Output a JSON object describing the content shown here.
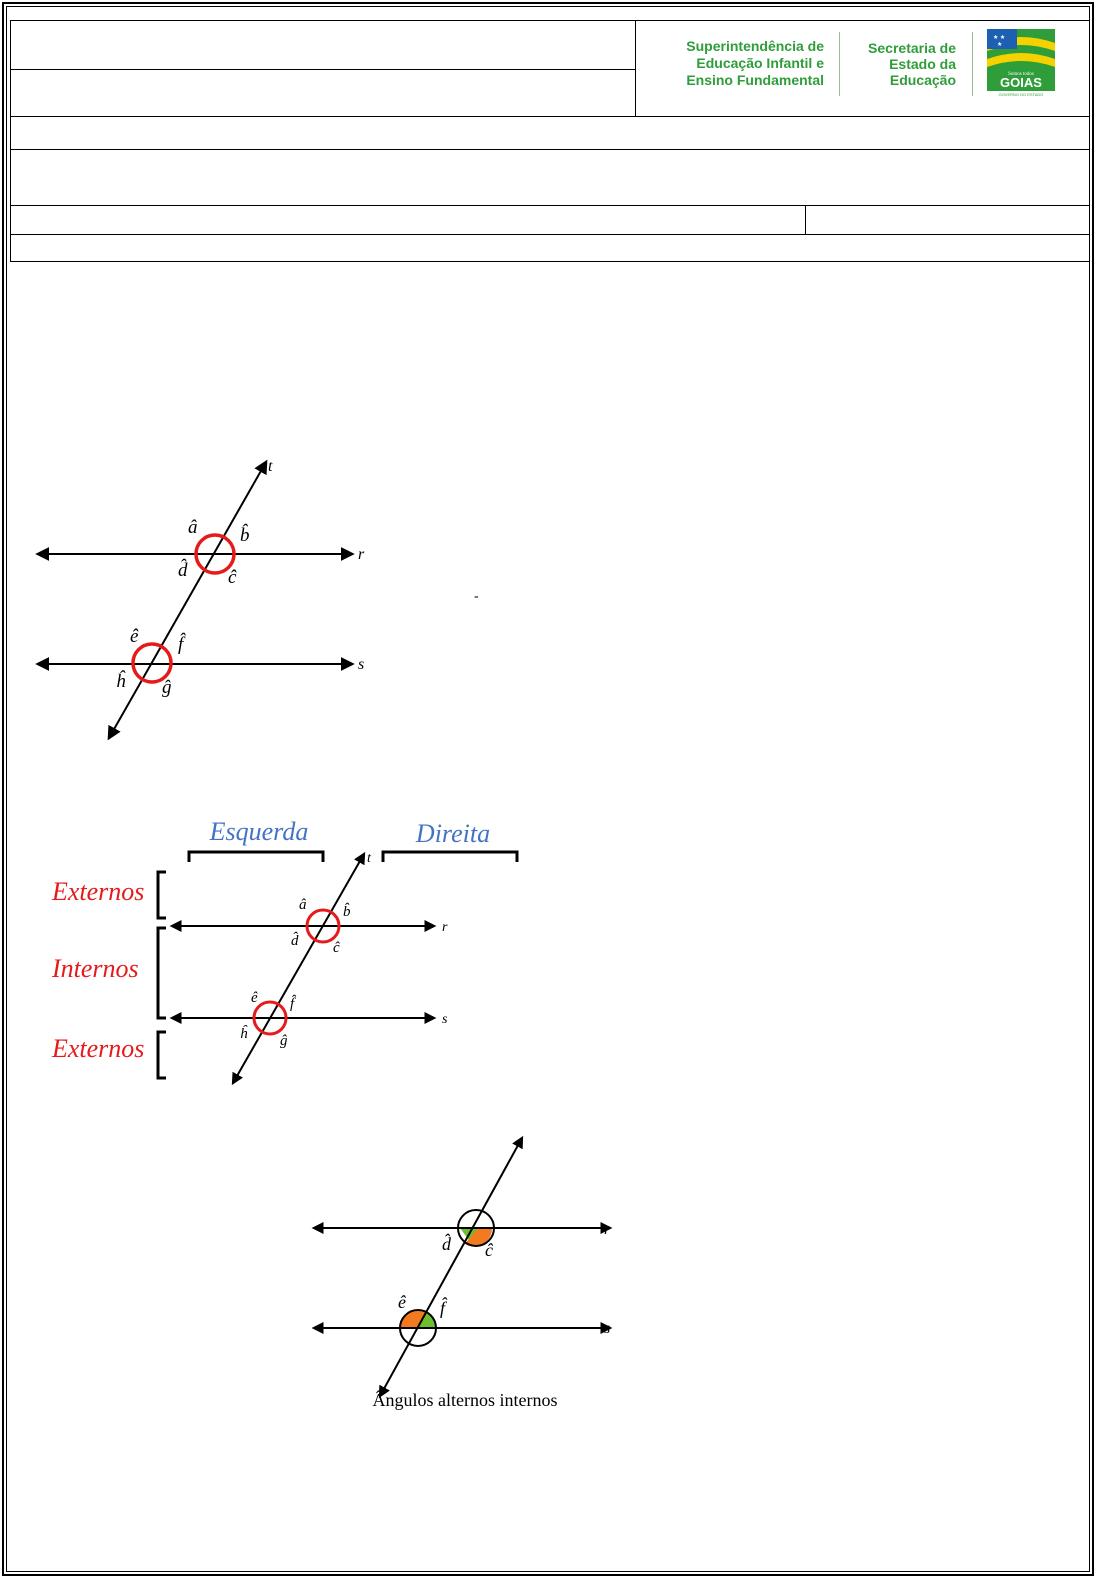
{
  "header": {
    "logo_left_lines": [
      "Superintendência de",
      "Educação Infantil e",
      "Ensino Fundamental"
    ],
    "logo_mid_lines": [
      "Secretaria de",
      "Estado da",
      "Educação"
    ],
    "logo_flag_text": "GOIAS",
    "logo_flag_small": "Somos todos",
    "logo_flag_footer": "GOVERNO DO ESTADO"
  },
  "figure1": {
    "line_labels": {
      "t": "t",
      "r": "r",
      "s": "s"
    },
    "angles": {
      "a": "â",
      "b": "b̂",
      "c": "ĉ",
      "d": "d̂",
      "e": "ê",
      "f": "f̂",
      "g": "ĝ",
      "h": "ĥ"
    }
  },
  "stray_mark": "-",
  "figure2": {
    "left_label": "Esquerda",
    "right_label": "Direita",
    "externos_top": "Externos",
    "internos": "Internos",
    "externos_bottom": "Externos",
    "line_labels": {
      "t": "t",
      "r": "r",
      "s": "s"
    },
    "angles": {
      "a": "â",
      "b": "b̂",
      "c": "ĉ",
      "d": "d̂",
      "e": "ê",
      "f": "f̂",
      "g": "ĝ",
      "h": "ĥ"
    }
  },
  "figure3": {
    "line_labels": {
      "r": "r",
      "s": "s"
    },
    "angles": {
      "d": "d̂",
      "c": "ĉ",
      "e": "ê",
      "f": "f̂"
    },
    "caption": "Ângulos alternos internos",
    "colors": {
      "green": "#6cbf2f",
      "orange": "#f47a20"
    }
  },
  "colors": {
    "blue_label": "#4472c4",
    "red_label": "#e51a1a",
    "circle_red": "#e51a1a"
  }
}
